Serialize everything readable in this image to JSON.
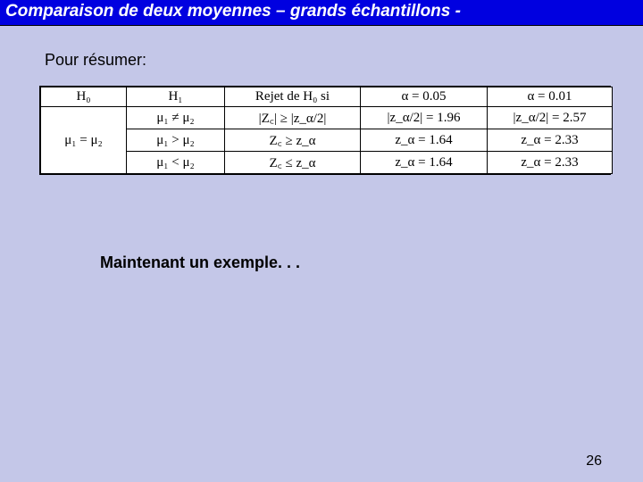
{
  "header": {
    "title": "Comparaison de deux moyennes – grands échantillons -"
  },
  "summary_label": "Pour résumer:",
  "table": {
    "headers": {
      "h0": "H₀",
      "h1": "H₁",
      "reject": "Rejet de H₀ si",
      "alpha05": "α = 0.05",
      "alpha01": "α = 0.01"
    },
    "h0_value": "μ₁ = μ₂",
    "rows": [
      {
        "h1": "μ₁ ≠ μ₂",
        "reject": "|Z꜀| ≥ |z_α/2|",
        "a05": "|z_α/2| = 1.96",
        "a01": "|z_α/2| = 2.57"
      },
      {
        "h1": "μ₁ > μ₂",
        "reject": "Z꜀ ≥ z_α",
        "a05": "z_α = 1.64",
        "a01": "z_α = 2.33"
      },
      {
        "h1": "μ₁ < μ₂",
        "reject": "Z꜀ ≤ z_α",
        "a05": "z_α = 1.64",
        "a01": "z_α = 2.33"
      }
    ]
  },
  "example_label": "Maintenant un exemple. . .",
  "page_number": "26",
  "colors": {
    "title_bar_bg": "#0000e0",
    "title_text": "#ffffff",
    "page_bg": "#c4c7e8",
    "table_bg": "#ffffff",
    "border": "#000000",
    "text": "#000000"
  }
}
